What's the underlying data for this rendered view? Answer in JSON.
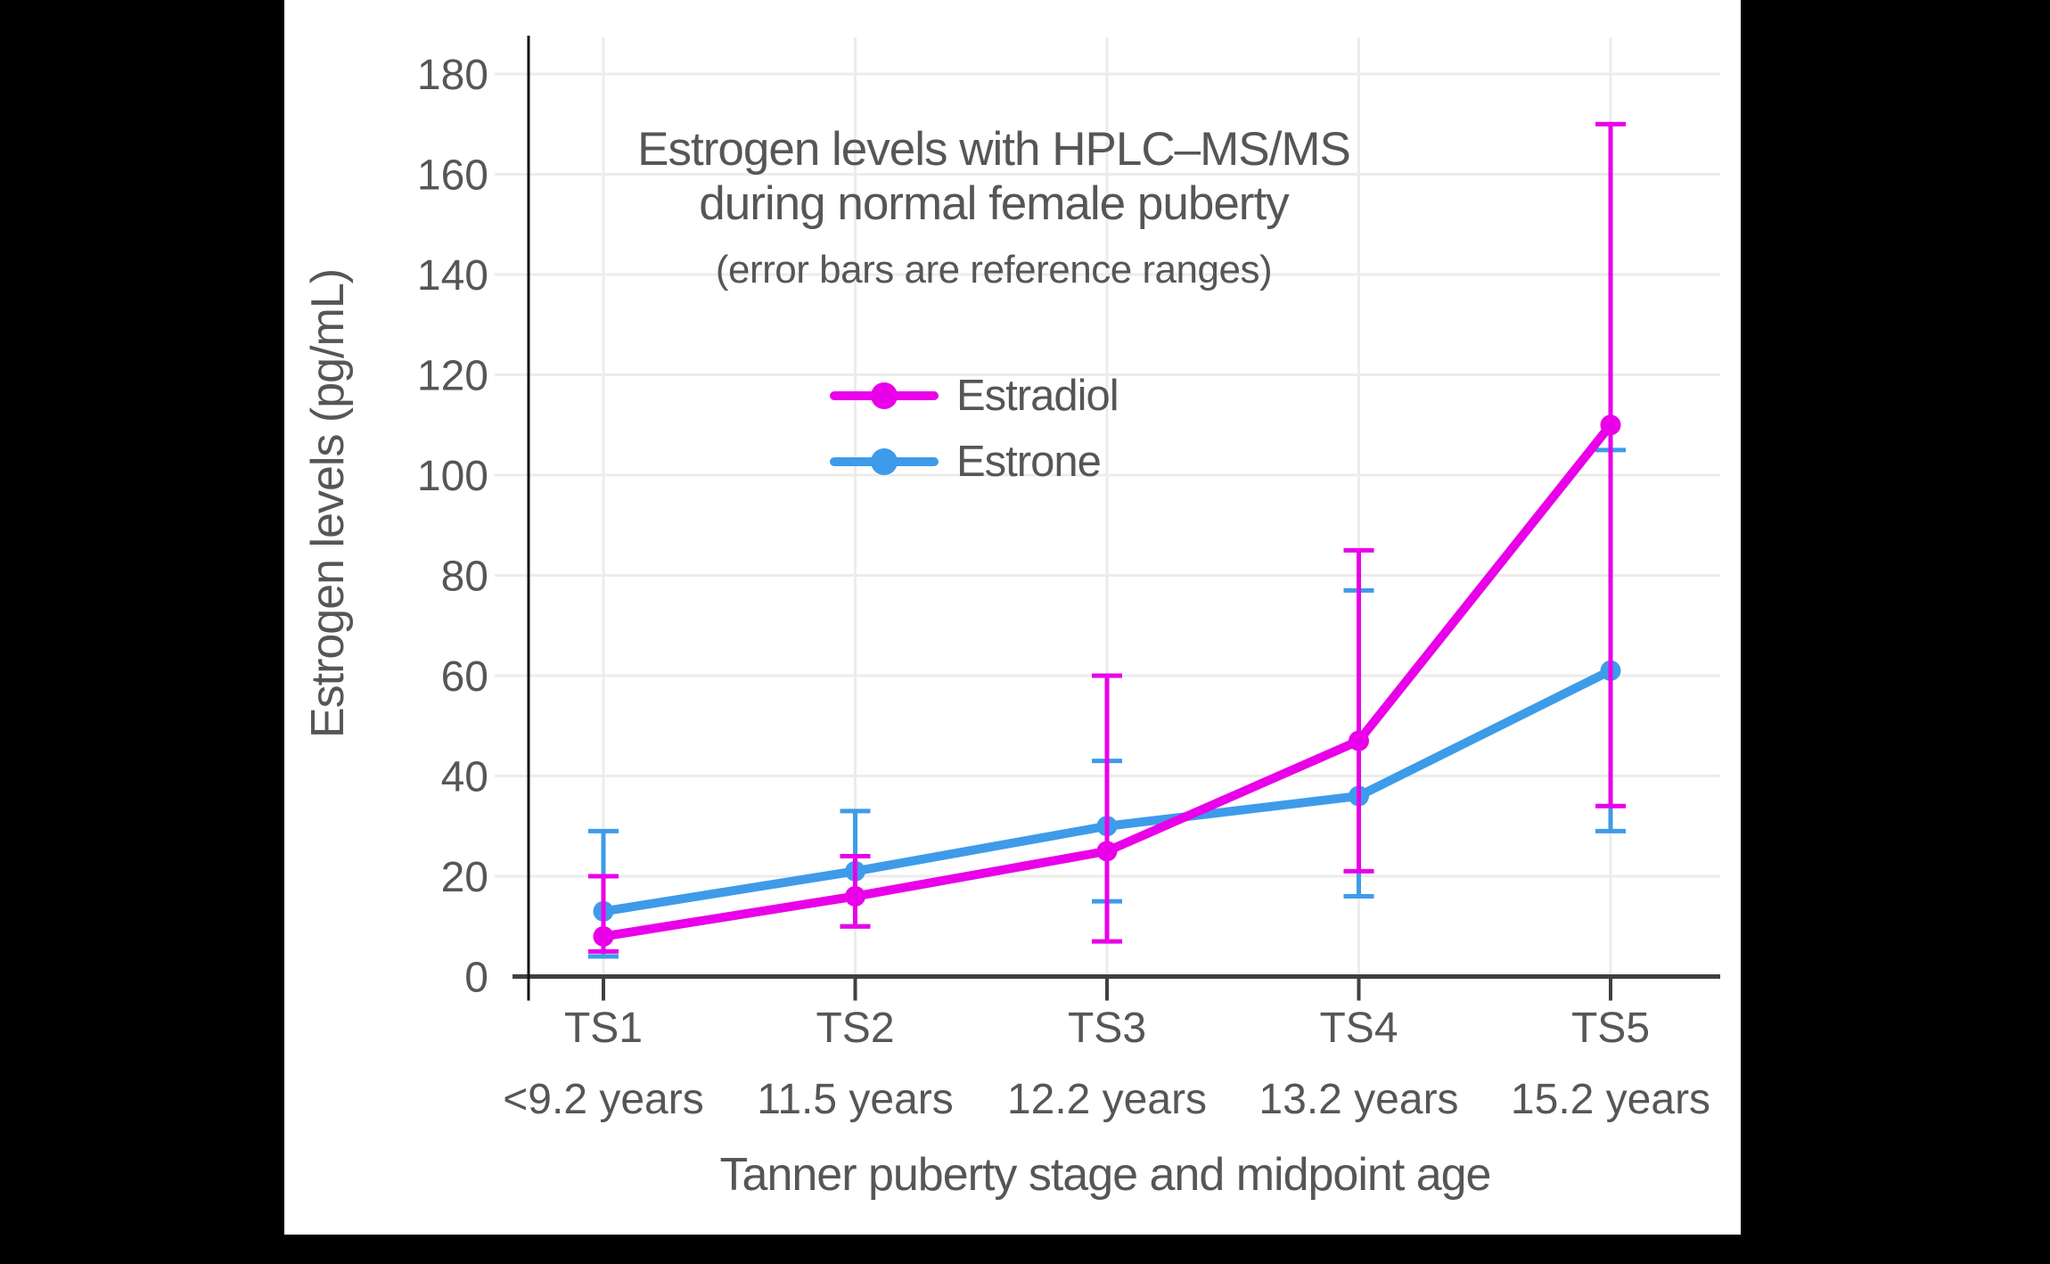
{
  "colors": {
    "page_background": "#000000",
    "canvas_background": "#FFFFFF",
    "text": "#565656",
    "grid": "#ECECEC",
    "x_axis_line": "#404040",
    "y_axis_line": "#111111"
  },
  "chart_data": {
    "type": "line",
    "title": "Estrogen levels with HPLC–MS/MS",
    "title_line2": "during normal female puberty",
    "subtitle": "(error bars are reference ranges)",
    "xlabel": "Tanner puberty stage and midpoint age",
    "ylabel": "Estrogen levels (pg/mL)",
    "categories": [
      "TS1",
      "TS2",
      "TS3",
      "TS4",
      "TS5"
    ],
    "category_ages": [
      "<9.2 years",
      "11.5 years",
      "12.2 years",
      "13.2 years",
      "15.2 years"
    ],
    "series": [
      {
        "name": "Estradiol",
        "color": "#E900E9",
        "values": [
          8,
          16,
          25,
          47,
          110
        ],
        "error_low": [
          5,
          10,
          7,
          21,
          34
        ],
        "error_high": [
          20,
          24,
          60,
          85,
          170
        ]
      },
      {
        "name": "Estrone",
        "color": "#3E9BEA",
        "values": [
          13,
          21,
          30,
          36,
          61
        ],
        "error_low": [
          4,
          10,
          15,
          16,
          29
        ],
        "error_high": [
          29,
          33,
          43,
          77,
          105
        ]
      }
    ],
    "ylim": [
      0,
      187
    ],
    "yticks": [
      0,
      20,
      40,
      60,
      80,
      100,
      120,
      140,
      160,
      180
    ],
    "grid": true,
    "legend_position": "inside-upper-left",
    "units": "pg/mL"
  }
}
